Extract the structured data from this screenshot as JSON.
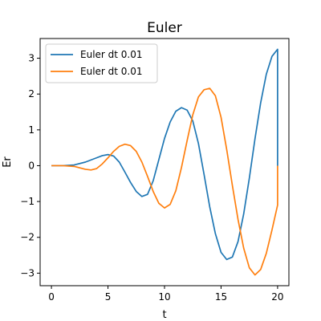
{
  "chart_data": {
    "type": "line",
    "title": "Euler",
    "xlabel": "t",
    "ylabel": "Er",
    "xlim": [
      -1,
      21
    ],
    "ylim": [
      -3.35,
      3.55
    ],
    "xticks": [
      0,
      5,
      10,
      15,
      20
    ],
    "xtick_labels": [
      "0",
      "5",
      "10",
      "15",
      "20"
    ],
    "yticks": [
      -3,
      -2,
      -1,
      0,
      1,
      2,
      3
    ],
    "ytick_labels": [
      "−3",
      "−2",
      "−1",
      "0",
      "1",
      "2",
      "3"
    ],
    "grid": false,
    "legend_position": "upper-left",
    "series": [
      {
        "name": "Euler dt 0.01",
        "color": "#1f77b4",
        "x": [
          0,
          1,
          2,
          3,
          4,
          4.5,
          5,
          5.5,
          6,
          6.5,
          7,
          7.5,
          8,
          8.5,
          9,
          9.5,
          10,
          10.5,
          11,
          11.5,
          12,
          12.5,
          13,
          13.5,
          14,
          14.5,
          15,
          15.5,
          16,
          16.5,
          17,
          17.5,
          18,
          18.5,
          19,
          19.5,
          20,
          20,
          20
        ],
        "y": [
          0,
          0,
          0.02,
          0.1,
          0.22,
          0.28,
          0.31,
          0.27,
          0.1,
          -0.18,
          -0.47,
          -0.72,
          -0.86,
          -0.8,
          -0.42,
          0.17,
          0.76,
          1.22,
          1.52,
          1.62,
          1.55,
          1.25,
          0.62,
          -0.25,
          -1.15,
          -1.9,
          -2.42,
          -2.62,
          -2.55,
          -2.12,
          -1.35,
          -0.35,
          0.75,
          1.75,
          2.55,
          3.05,
          3.25,
          1.2,
          0
        ]
      },
      {
        "name": "Euler dt 0.01",
        "color": "#ff7f0e",
        "x": [
          0,
          1,
          2,
          3,
          3.5,
          4,
          4.5,
          5,
          5.5,
          6,
          6.5,
          7,
          7.5,
          8,
          8.5,
          9,
          9.5,
          10,
          10.5,
          11,
          11.5,
          12,
          12.5,
          13,
          13.5,
          14,
          14.5,
          15,
          15.5,
          16,
          16.5,
          17,
          17.5,
          18,
          18.5,
          19,
          19.5,
          20,
          20,
          20
        ],
        "y": [
          0,
          0,
          -0.02,
          -0.1,
          -0.12,
          -0.08,
          0.05,
          0.22,
          0.4,
          0.54,
          0.6,
          0.56,
          0.4,
          0.1,
          -0.3,
          -0.72,
          -1.05,
          -1.18,
          -1.08,
          -0.7,
          -0.05,
          0.7,
          1.42,
          1.92,
          2.12,
          2.16,
          1.95,
          1.35,
          0.45,
          -0.55,
          -1.5,
          -2.3,
          -2.85,
          -3.05,
          -2.9,
          -2.45,
          -1.8,
          -1.1,
          -0.4,
          0
        ]
      }
    ]
  }
}
